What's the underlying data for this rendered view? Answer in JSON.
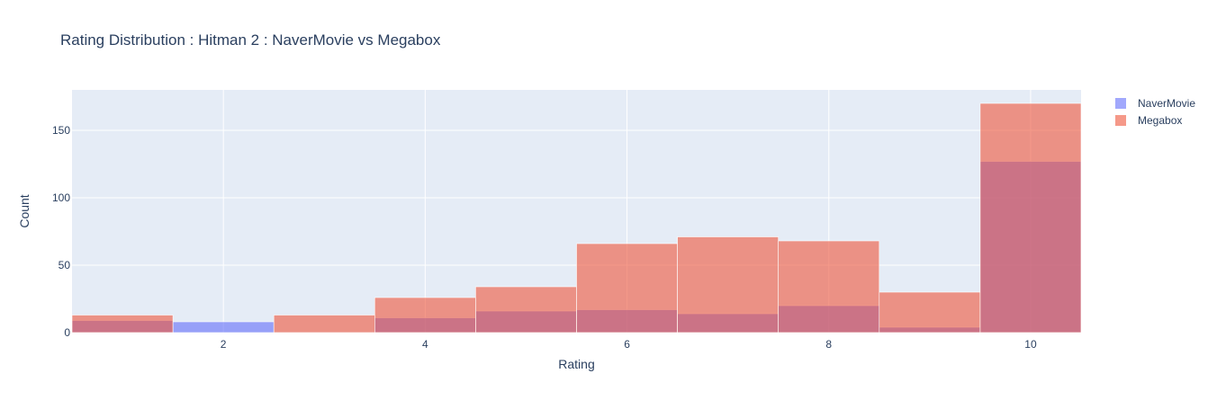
{
  "chart_data": {
    "type": "bar",
    "barmode": "overlay",
    "title": "Rating Distribution : Hitman 2 : NaverMovie vs Megabox",
    "xlabel": "Rating",
    "ylabel": "Count",
    "x": [
      1,
      2,
      3,
      4,
      5,
      6,
      7,
      8,
      9,
      10
    ],
    "xlim": [
      0.5,
      10.5
    ],
    "ylim": [
      0,
      180
    ],
    "xticks": [
      2,
      4,
      6,
      8,
      10
    ],
    "yticks": [
      0,
      50,
      100,
      150
    ],
    "grid": true,
    "legend_position": "top-right",
    "plot_bgcolor": "#e5ecf6",
    "series": [
      {
        "name": "NaverMovie",
        "color": "#636efa",
        "opacity": 0.6,
        "values": [
          9,
          8,
          0,
          11,
          16,
          17,
          14,
          20,
          4,
          127
        ]
      },
      {
        "name": "Megabox",
        "color": "#ef553b",
        "opacity": 0.6,
        "values": [
          13,
          0,
          13,
          26,
          34,
          66,
          71,
          68,
          30,
          170
        ]
      }
    ]
  }
}
